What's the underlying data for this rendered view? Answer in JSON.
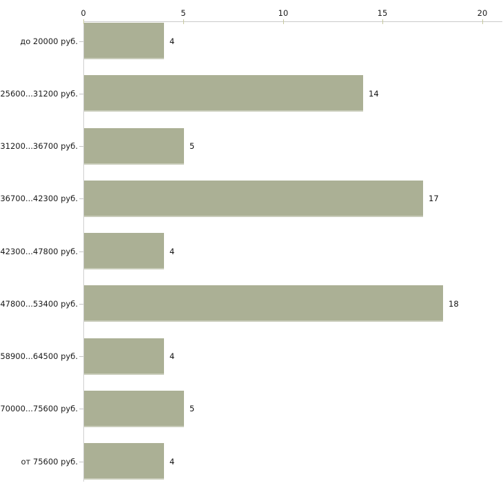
{
  "chart_data": {
    "type": "bar",
    "orientation": "horizontal",
    "title": "",
    "xlabel": "",
    "ylabel": "",
    "categories": [
      "до 20000 руб.",
      "25600...31200 руб.",
      "31200...36700 руб.",
      "36700...42300 руб.",
      "42300...47800 руб.",
      "47800...53400 руб.",
      "58900...64500 руб.",
      "70000...75600 руб.",
      "от 75600 руб."
    ],
    "values": [
      4,
      14,
      5,
      17,
      4,
      18,
      4,
      5,
      4
    ],
    "value_labels": [
      "4",
      "14",
      "5",
      "17",
      "4",
      "18",
      "4",
      "5",
      "4"
    ],
    "xlim": [
      0,
      20
    ],
    "xticks": [
      0,
      5,
      10,
      15,
      20
    ],
    "xtick_labels": [
      "0",
      "5",
      "10",
      "15",
      "20"
    ],
    "axis_position": "top",
    "grid": false,
    "legend": false,
    "bar_color": "#abb095",
    "axis_line_color": "#c9c9c9",
    "tick_mark_color": "#c6c89e",
    "text_color": "#1a1a1a"
  }
}
